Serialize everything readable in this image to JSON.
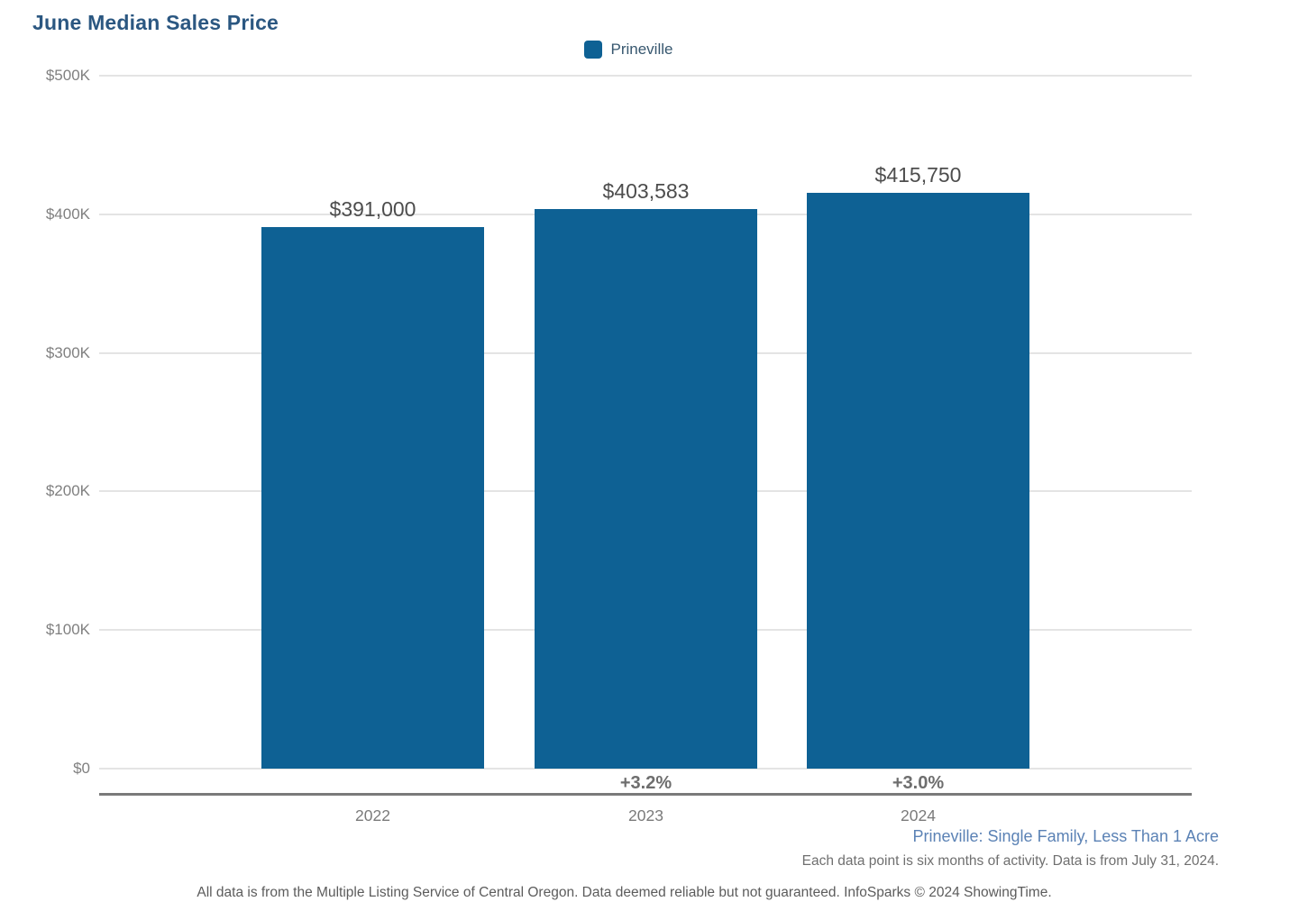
{
  "title": "June Median Sales Price",
  "legend": {
    "label": "Prineville",
    "swatch_color": "#0e6194"
  },
  "colors": {
    "title_text": "#2b5781",
    "bar": "#0e6194",
    "grid_line": "#e4e4e4",
    "axis_line": "#7a7a7a",
    "value_label": "#4d4d4d",
    "pct_label": "#6e6e6e",
    "ytick_label": "#808080",
    "xtick_label": "#7a7a7a",
    "legend_label": "#37576f",
    "footer_blue": "#5b82b5",
    "footer_gray": "#6f6f6f",
    "attribution_gray": "#5c5c5c"
  },
  "chart_data": {
    "type": "bar",
    "title": "June Median Sales Price",
    "categories": [
      "2022",
      "2023",
      "2024"
    ],
    "series": [
      {
        "name": "Prineville",
        "values": [
          391000,
          403583,
          415750
        ]
      }
    ],
    "value_labels": [
      "$391,000",
      "$403,583",
      "$415,750"
    ],
    "pct_change_labels": [
      null,
      "+3.2%",
      "+3.0%"
    ],
    "ylabel": "",
    "xlabel": "",
    "ylim": [
      0,
      500000
    ],
    "ytick_labels": [
      "$0",
      "$100K",
      "$200K",
      "$300K",
      "$400K",
      "$500K"
    ],
    "grid": true,
    "legend_position": "top-center"
  },
  "footer": {
    "segment_label": "Prineville: Single Family, Less Than 1 Acre",
    "data_note": "Each data point is six months of activity. Data is from July 31, 2024.",
    "attribution": "All data is from the Multiple Listing Service of Central Oregon. Data deemed reliable but not guaranteed. InfoSparks © 2024 ShowingTime."
  }
}
